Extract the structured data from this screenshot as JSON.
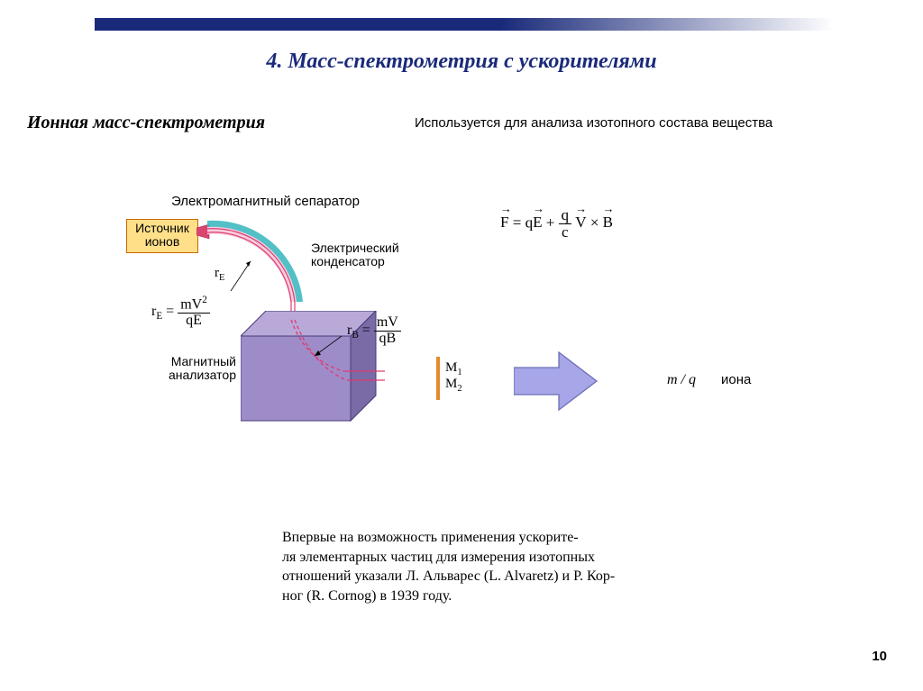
{
  "page": {
    "number": "10",
    "title": "4.   Масс-спектрометрия с ускорителями",
    "title_color": "#1a2a7a",
    "title_fontsize": 24
  },
  "subtitle": {
    "text": "Ионная масс-спектрометрия",
    "fontsize": 20,
    "color": "#000000"
  },
  "description": {
    "text": "Используется для анализа изотопного состава вещества",
    "fontsize": 15,
    "color": "#000000"
  },
  "topbar": {
    "left_color": "#1a2a7a",
    "right_color": "#ffffff"
  },
  "diagram": {
    "separator_label": "Электромагнитный сепаратор",
    "ion_source_label": "Источник\nионов",
    "capacitor_label": "Электрический\nконденсатор",
    "magnet_label": "Магнитный\nанализатор",
    "rE_symbol": "r",
    "rE_sub": "E",
    "rB_symbol": "r",
    "rB_sub": "B",
    "M1": "M",
    "M1_sub": "1",
    "M2": "M",
    "M2_sub": "2",
    "ion_source_fill": "#ffe089",
    "ion_source_border": "#cc6600",
    "magnet_top_fill": "#b8a9d9",
    "magnet_front_fill": "#9e8cc9",
    "magnet_side_fill": "#7a6aa6",
    "magnet_stroke": "#4a3a7a",
    "arc_outer": "#3fb9c0",
    "arc_inner": "#d9456f",
    "beam_color": "#e03a6f",
    "detector_color": "#e38b2a",
    "label_fontsize": 15,
    "small_label_fontsize": 14
  },
  "formula_rE": {
    "lhs_base": "r",
    "lhs_sub": "E",
    "num": "mV",
    "num_sup": "2",
    "den": "qE",
    "fontsize": 16
  },
  "formula_rB": {
    "lhs_base": "r",
    "lhs_sub": "B",
    "num": "mV",
    "den": "qB",
    "fontsize": 16
  },
  "formula_lorentz": {
    "fontsize": 17,
    "F": "F",
    "eq": " = ",
    "q1": "q",
    "E": "E",
    "plus": " + ",
    "frac_num": "q",
    "frac_den": "c",
    "V": "V",
    "times": " × ",
    "B": "B"
  },
  "result": {
    "ratio": "m / q",
    "ratio_fontsize": 16,
    "ion_word": "иона",
    "ion_fontsize": 15,
    "arrow_fill": "#a6a6e8",
    "arrow_stroke": "#6d6db8"
  },
  "footnote": {
    "text": "Впервые на возможность применения ускорите-\nля элементарных частиц для измерения изотопных\nотношений указали Л. Альварес (L. Alvaretz) и Р. Кор-\nног (R. Cornog) в 1939 году.",
    "fontsize": 16
  }
}
